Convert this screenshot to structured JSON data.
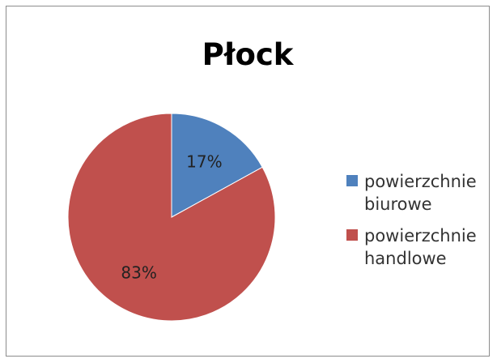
{
  "chart_data": {
    "type": "pie",
    "title": "Płock",
    "slices": [
      {
        "label_lines": [
          "powierzchnie",
          "biurowe"
        ],
        "value": 17,
        "display": "17%",
        "color": "#4f81bd"
      },
      {
        "label_lines": [
          "powierzchnie",
          "handlowe"
        ],
        "value": 83,
        "display": "83%",
        "color": "#c0504d"
      }
    ],
    "legend_position": "right"
  }
}
